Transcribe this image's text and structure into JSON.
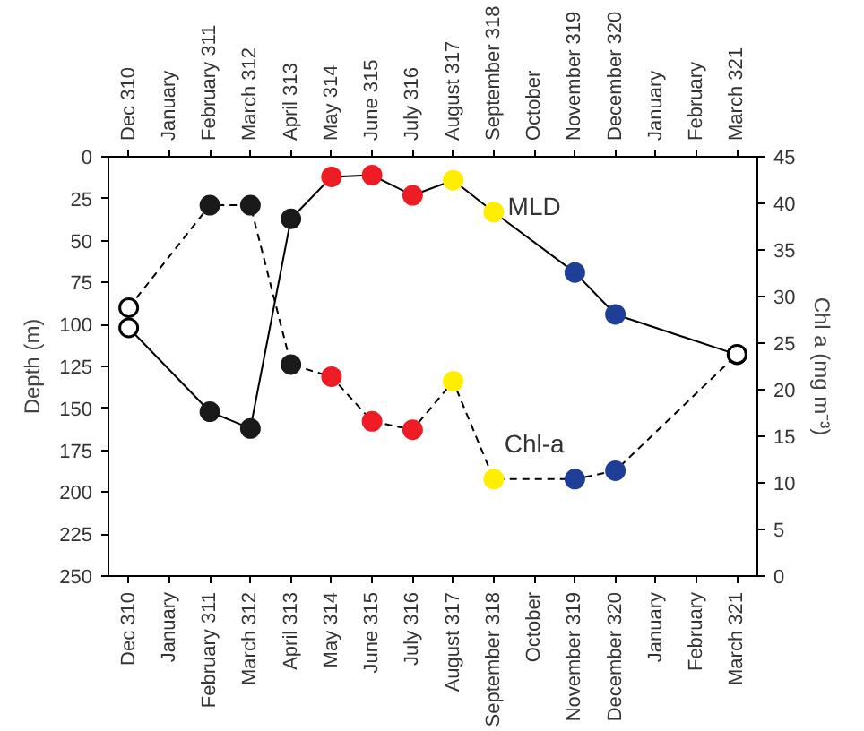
{
  "chart_data": {
    "type": "line",
    "categories": [
      "Dec 310",
      "January",
      "February 311",
      "March 312",
      "April 313",
      "May 314",
      "June 315",
      "July 316",
      "August 317",
      "September 318",
      "October",
      "November 319",
      "December 320",
      "January",
      "February",
      "March 321"
    ],
    "ylabel": "Depth (m)",
    "y2label": "Chl a (mg m⁻³)",
    "ylim": [
      250,
      0
    ],
    "yticks": [
      0,
      25,
      50,
      75,
      100,
      125,
      150,
      175,
      200,
      225,
      250
    ],
    "y2lim": [
      0,
      45
    ],
    "y2ticks": [
      0,
      5,
      10,
      15,
      20,
      25,
      30,
      35,
      40,
      45
    ],
    "marker": "circle",
    "grid": false,
    "series": [
      {
        "name": "MLD",
        "color": "#000000",
        "line_style": "solid",
        "values": [
          102,
          null,
          152,
          162,
          37,
          12,
          11,
          23,
          14,
          33,
          null,
          69,
          94,
          null,
          null,
          118
        ],
        "colors": [
          "#ffffff",
          null,
          "#1a1a1a",
          "#1a1a1a",
          "#1a1a1a",
          "#ee1c24",
          "#ee1c24",
          "#ee1c24",
          "#ffee00",
          "#ffee00",
          null,
          "#1f3e96",
          "#1f3e96",
          null,
          null,
          "#ffffff"
        ]
      },
      {
        "name": "Chl-a",
        "color": "#000000",
        "line_style": "dashed",
        "axis": "y2",
        "values": [
          28.8,
          null,
          39.8,
          39.8,
          22.7,
          21.4,
          16.6,
          15.7,
          20.9,
          10.4,
          null,
          10.4,
          11.3,
          null,
          null,
          23.8
        ],
        "colors": [
          "#ffffff",
          null,
          "#1a1a1a",
          "#1a1a1a",
          "#1a1a1a",
          "#ee1c24",
          "#ee1c24",
          "#ee1c24",
          "#ffee00",
          "#ffee00",
          null,
          "#1f3e96",
          "#1f3e96",
          null,
          null,
          "#ffffff"
        ]
      }
    ]
  }
}
